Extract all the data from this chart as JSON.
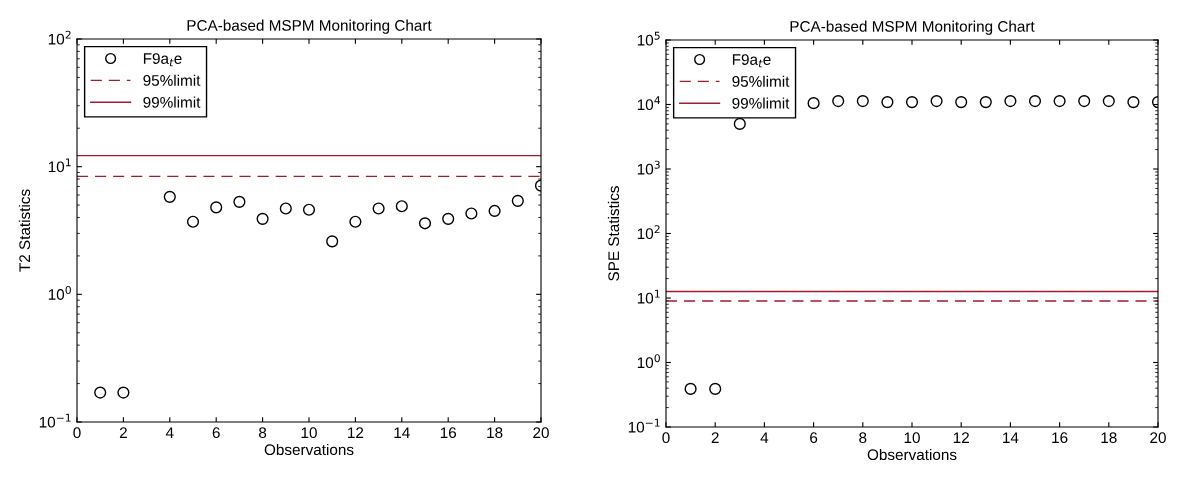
{
  "chart_data": [
    {
      "type": "scatter",
      "title": "PCA-based MSPM Monitoring Chart",
      "xlabel": "Observations",
      "ylabel": "T2 Statistics",
      "log": "y",
      "marker": "circle",
      "legend": "top left",
      "grid": false,
      "x": [
        1,
        2,
        3,
        4,
        5,
        6,
        7,
        8,
        9,
        10,
        11,
        12,
        13,
        14,
        15,
        16,
        17,
        18,
        19,
        20
      ],
      "series": [
        {
          "name": "F9a$_{t}$e",
          "color": "#000000",
          "values": [
            0.17,
            0.17,
            null,
            5.8,
            3.7,
            4.8,
            5.3,
            3.9,
            4.7,
            4.6,
            2.6,
            3.7,
            4.7,
            4.9,
            3.6,
            3.9,
            4.3,
            4.5,
            5.4,
            7.1
          ]
        }
      ],
      "ref_lines": [
        {
          "axis": "y",
          "value": 8.4,
          "label": "95%limit",
          "color": "#a01c2c",
          "line_style": "dashed"
        },
        {
          "axis": "y",
          "value": 12.2,
          "label": "99%limit",
          "color": "#a01c2c",
          "line_style": "solid"
        }
      ],
      "xlim": [
        0,
        20
      ],
      "xticks": [
        0,
        2,
        4,
        6,
        8,
        10,
        12,
        14,
        16,
        18,
        20
      ],
      "ylim": [
        0.1,
        100
      ],
      "yticks": [
        {
          "value": 0.1,
          "label": "10$^{−1}$"
        },
        {
          "value": 1,
          "label": "10$^{0}$"
        },
        {
          "value": 10,
          "label": "10$^{1}$"
        },
        {
          "value": 100,
          "label": "10$^{2}$"
        }
      ]
    },
    {
      "type": "scatter",
      "title": "PCA-based MSPM Monitoring Chart",
      "xlabel": "Observations",
      "ylabel": "SPE Statistics",
      "log": "y",
      "marker": "circle",
      "legend": "top left",
      "grid": false,
      "x": [
        1,
        2,
        3,
        4,
        5,
        6,
        7,
        8,
        9,
        10,
        11,
        12,
        13,
        14,
        15,
        16,
        17,
        18,
        19,
        20
      ],
      "series": [
        {
          "name": "F9a$_{t}$e",
          "color": "#000000",
          "values": [
            0.39,
            0.39,
            5000,
            null,
            null,
            10500,
            11300,
            11300,
            10900,
            10900,
            11300,
            10900,
            10900,
            11300,
            11300,
            11300,
            11300,
            11300,
            10900,
            10900
          ]
        }
      ],
      "ref_lines": [
        {
          "axis": "y",
          "value": 9.0,
          "label": "95%limit",
          "color": "#a01c2c",
          "line_style": "dashed"
        },
        {
          "axis": "y",
          "value": 12.6,
          "label": "99%limit",
          "color": "#a01c2c",
          "line_style": "solid"
        }
      ],
      "xlim": [
        0,
        20
      ],
      "xticks": [
        0,
        2,
        4,
        6,
        8,
        10,
        12,
        14,
        16,
        18,
        20
      ],
      "ylim": [
        0.1,
        100000
      ],
      "yticks": [
        {
          "value": 0.1,
          "label": "10$^{−1}$"
        },
        {
          "value": 1,
          "label": "10$^{0}$"
        },
        {
          "value": 10,
          "label": "10$^{1}$"
        },
        {
          "value": 100,
          "label": "10$^{2}$"
        },
        {
          "value": 1000,
          "label": "10$^{3}$"
        },
        {
          "value": 10000,
          "label": "10$^{4}$"
        },
        {
          "value": 100000,
          "label": "10$^{5}$"
        }
      ]
    }
  ]
}
